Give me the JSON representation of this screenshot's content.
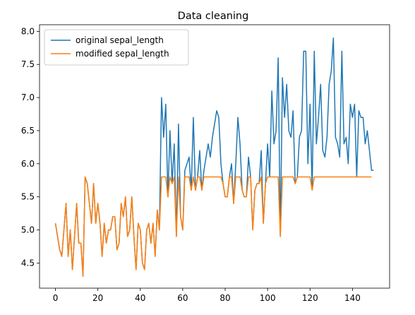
{
  "chart_data": {
    "type": "line",
    "title": "Data cleaning",
    "xlabel": "",
    "ylabel": "",
    "xlim": [
      -7.5,
      157.5
    ],
    "ylim": [
      4.12,
      8.1
    ],
    "xticks": [
      0,
      20,
      40,
      60,
      80,
      100,
      120,
      140
    ],
    "yticks": [
      4.5,
      5.0,
      5.5,
      6.0,
      6.5,
      7.0,
      7.5,
      8.0
    ],
    "xtick_labels": [
      "0",
      "20",
      "40",
      "60",
      "80",
      "100",
      "120",
      "140"
    ],
    "ytick_labels": [
      "4.5",
      "5.0",
      "5.5",
      "6.0",
      "6.5",
      "7.0",
      "7.5",
      "8.0"
    ],
    "grid": false,
    "legend_position": "top-left",
    "series": [
      {
        "name": "original sepal_length",
        "color": "#1f77b4",
        "values": [
          5.1,
          4.9,
          4.7,
          4.6,
          5.0,
          5.4,
          4.6,
          5.0,
          4.4,
          4.9,
          5.4,
          4.8,
          4.8,
          4.3,
          5.8,
          5.7,
          5.4,
          5.1,
          5.7,
          5.1,
          5.4,
          5.1,
          4.6,
          5.1,
          4.8,
          5.0,
          5.0,
          5.2,
          5.2,
          4.7,
          4.8,
          5.4,
          5.2,
          5.5,
          4.9,
          5.0,
          5.5,
          4.9,
          4.4,
          5.1,
          5.0,
          4.5,
          4.4,
          5.0,
          5.1,
          4.8,
          5.1,
          4.6,
          5.3,
          5.0,
          7.0,
          6.4,
          6.9,
          5.5,
          6.5,
          5.7,
          6.3,
          4.9,
          6.6,
          5.2,
          5.0,
          5.9,
          6.0,
          6.1,
          5.6,
          6.7,
          5.6,
          5.8,
          6.2,
          5.6,
          5.9,
          6.1,
          6.3,
          6.1,
          6.4,
          6.6,
          6.8,
          6.7,
          6.0,
          5.7,
          5.5,
          5.5,
          5.8,
          6.0,
          5.4,
          6.0,
          6.7,
          6.3,
          5.6,
          5.5,
          5.5,
          6.1,
          5.8,
          5.0,
          5.6,
          5.7,
          5.7,
          6.2,
          5.1,
          5.7,
          6.3,
          5.8,
          7.1,
          6.3,
          6.5,
          7.6,
          4.9,
          7.3,
          6.7,
          7.2,
          6.5,
          6.4,
          6.8,
          5.7,
          5.8,
          6.4,
          6.5,
          7.7,
          7.7,
          6.0,
          6.9,
          5.6,
          7.7,
          6.3,
          6.7,
          7.2,
          6.2,
          6.1,
          6.4,
          7.2,
          7.4,
          7.9,
          6.4,
          6.3,
          6.1,
          7.7,
          6.3,
          6.4,
          6.0,
          6.9,
          6.7,
          6.9,
          5.8,
          6.8,
          6.7,
          6.7,
          6.3,
          6.5,
          6.2,
          5.9,
          5.9
        ]
      },
      {
        "name": "modified sepal_length",
        "color": "#ff7f0e",
        "values": [
          5.1,
          4.9,
          4.7,
          4.6,
          5.0,
          5.4,
          4.6,
          5.0,
          4.4,
          4.9,
          5.4,
          4.8,
          4.8,
          4.3,
          5.8,
          5.7,
          5.4,
          5.1,
          5.7,
          5.1,
          5.4,
          5.1,
          4.6,
          5.1,
          4.8,
          5.0,
          5.0,
          5.2,
          5.2,
          4.7,
          4.8,
          5.4,
          5.2,
          5.5,
          4.9,
          5.0,
          5.5,
          4.9,
          4.4,
          5.1,
          5.0,
          4.5,
          4.4,
          5.0,
          5.1,
          4.8,
          5.1,
          4.6,
          5.3,
          5.0,
          5.8,
          5.8,
          5.8,
          5.5,
          5.8,
          5.7,
          5.8,
          4.9,
          5.8,
          5.2,
          5.0,
          5.8,
          5.8,
          5.8,
          5.6,
          5.8,
          5.6,
          5.8,
          5.8,
          5.6,
          5.8,
          5.8,
          5.8,
          5.8,
          5.8,
          5.8,
          5.8,
          5.8,
          5.8,
          5.7,
          5.5,
          5.5,
          5.8,
          5.8,
          5.4,
          5.8,
          5.8,
          5.8,
          5.6,
          5.5,
          5.5,
          5.8,
          5.8,
          5.0,
          5.6,
          5.7,
          5.7,
          5.8,
          5.1,
          5.7,
          5.8,
          5.8,
          5.8,
          5.8,
          5.8,
          5.8,
          4.9,
          5.8,
          5.8,
          5.8,
          5.8,
          5.8,
          5.8,
          5.7,
          5.8,
          5.8,
          5.8,
          5.8,
          5.8,
          5.8,
          5.8,
          5.6,
          5.8,
          5.8,
          5.8,
          5.8,
          5.8,
          5.8,
          5.8,
          5.8,
          5.8,
          5.8,
          5.8,
          5.8,
          5.8,
          5.8,
          5.8,
          5.8,
          5.8,
          5.8,
          5.8,
          5.8,
          5.8,
          5.8,
          5.8,
          5.8,
          5.8,
          5.8,
          5.8,
          5.8
        ]
      }
    ]
  }
}
